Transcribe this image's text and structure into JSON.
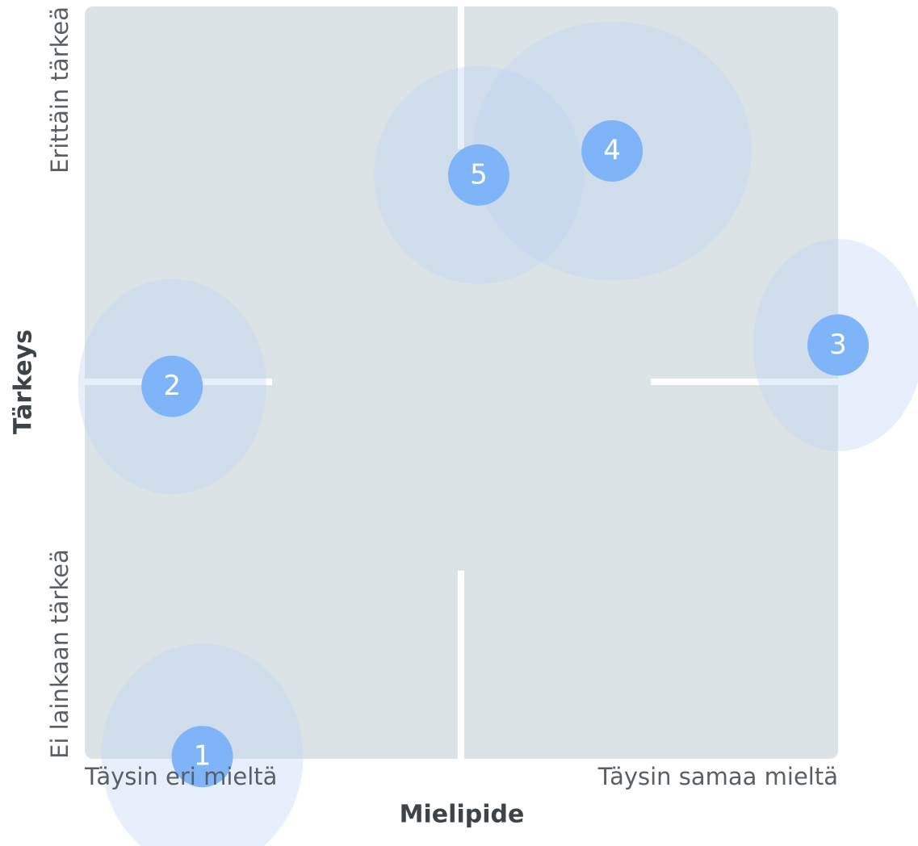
{
  "chart_data": {
    "type": "bubble-quadrant",
    "xlabel": "Mielipide",
    "ylabel": "Tärkeys",
    "xlim": [
      0,
      100
    ],
    "ylim": [
      0,
      100
    ],
    "xticks": [
      {
        "value": 0,
        "label": "Täysin eri mieltä"
      },
      {
        "value": 100,
        "label": "Täysin samaa mieltä"
      }
    ],
    "yticks": [
      {
        "value": 0,
        "label": "Ei lainkaan tärkeä"
      },
      {
        "value": 100,
        "label": "Erittäin tärkeä"
      }
    ],
    "color": "#7fb5f8",
    "points": [
      {
        "label": "1",
        "x": 15.6,
        "y": 0.3,
        "xerr": 13.4,
        "yerr": 15.0
      },
      {
        "label": "2",
        "x": 11.6,
        "y": 49.5,
        "xerr": 12.5,
        "yerr": 14.3
      },
      {
        "label": "3",
        "x": 100,
        "y": 55,
        "xerr": 11.3,
        "yerr": 14.1
      },
      {
        "label": "4",
        "x": 70,
        "y": 80.8,
        "xerr": 18.5,
        "yerr": 17.2
      },
      {
        "label": "5",
        "x": 52.3,
        "y": 77.6,
        "xerr": 13.9,
        "yerr": 14.5
      }
    ]
  }
}
